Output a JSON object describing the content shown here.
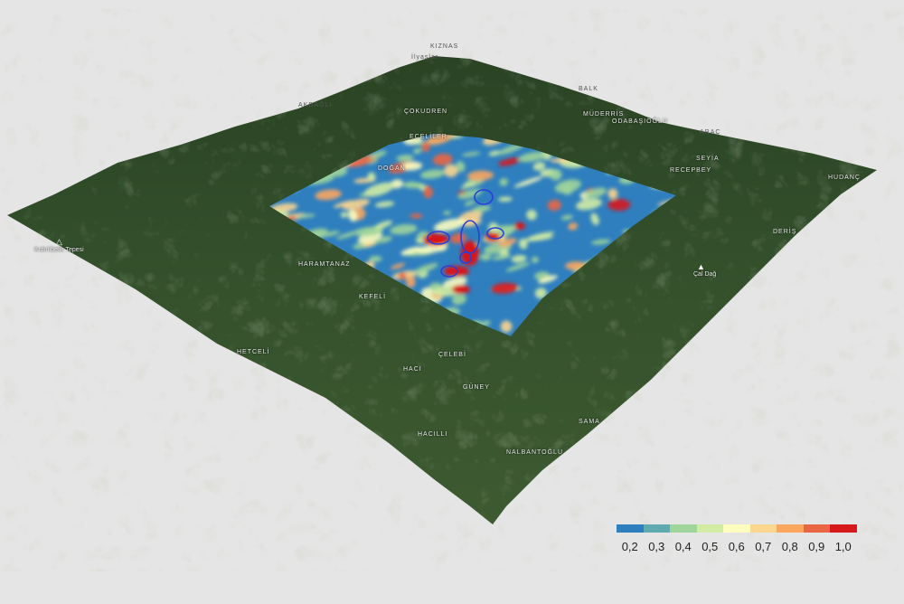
{
  "legend": {
    "colors": [
      "#2f7fbf",
      "#5fa9b0",
      "#9fd49a",
      "#d2eca4",
      "#fdfdbf",
      "#fcd58e",
      "#fba65f",
      "#ea6543",
      "#d7191c"
    ],
    "ticks": [
      "0,2",
      "0,3",
      "0,4",
      "0,5",
      "0,6",
      "0,7",
      "0,8",
      "0,9",
      "1,0"
    ]
  },
  "place_labels": {
    "kiznas": "KIZNAS",
    "ilyaslar": "İlyaslar",
    "akdagli": "AKDAĞLI",
    "cokudren": "ÇOKUDREN",
    "eceliler": "ECELİLER",
    "dogan": "DOĞAN",
    "balk": "BALK",
    "muderris": "MÜDERRİS",
    "odabasioglu": "ODABAŞIOĞLU",
    "arac": "ARAÇ",
    "seyia": "SEYİA",
    "recepbey": "RECEPBEY",
    "hudanc": "HUDANÇ",
    "deris": "DERİŞ",
    "caldag": "Çal Dağ",
    "kidirlibelik": "Kıdırlıbelik Tepesi",
    "haramtanaz": "HARAMTANAZ",
    "kefeli": "KEFELİ",
    "hetceli": "HETCELİ",
    "haci": "HACI",
    "celebi": "ÇELEBİ",
    "guney": "GÜNEY",
    "sama": "SAMA",
    "hacilli": "HACILLI",
    "nalbantoglu": "NALBANTOĞLU"
  },
  "terrain_color": "#2d4a26",
  "overlay_base_color": "#2f7fbf",
  "contour_color": "#2b3fd6"
}
